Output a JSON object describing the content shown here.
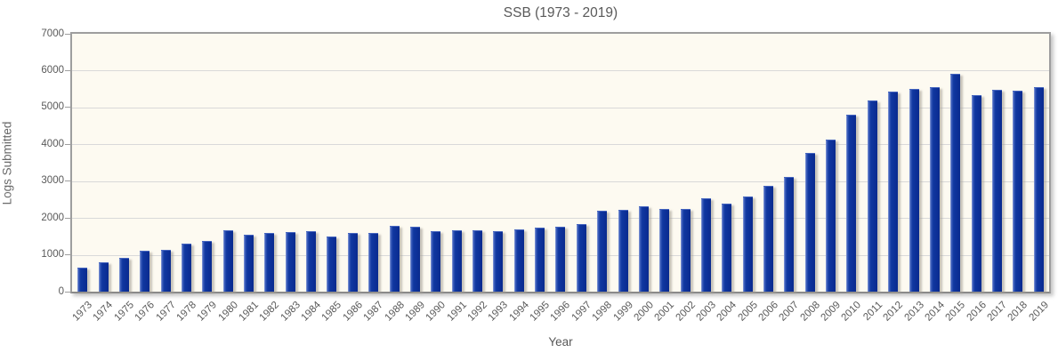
{
  "page": {
    "background": "#ffffff"
  },
  "chart": {
    "colors": {
      "bar_fill": "#0D37A2",
      "bar_highlight": "#8FA2DA",
      "bar_shadow": "#A39E94",
      "plot_background": "#FDFAF1",
      "gridline": "#D9D9D9",
      "axis_border": "#9E9E9E",
      "text": "#595959"
    }
  },
  "chart_data": {
    "type": "bar",
    "title": "SSB (1973 - 2019)",
    "xlabel": "Year",
    "ylabel": "Logs Submitted",
    "ylim": [
      0,
      7000
    ],
    "yticks": [
      0,
      1000,
      2000,
      3000,
      4000,
      5000,
      6000,
      7000
    ],
    "grid": "horizontal",
    "legend_position": "none",
    "categories": [
      "1973",
      "1974",
      "1975",
      "1976",
      "1977",
      "1978",
      "1979",
      "1980",
      "1981",
      "1982",
      "1983",
      "1984",
      "1985",
      "1986",
      "1987",
      "1988",
      "1989",
      "1990",
      "1991",
      "1992",
      "1993",
      "1994",
      "1995",
      "1996",
      "1997",
      "1998",
      "1999",
      "2000",
      "2001",
      "2002",
      "2003",
      "2004",
      "2005",
      "2006",
      "2007",
      "2008",
      "2009",
      "2010",
      "2011",
      "2012",
      "2013",
      "2014",
      "2015",
      "2016",
      "2017",
      "2018",
      "2019"
    ],
    "values": [
      620,
      780,
      900,
      1080,
      1120,
      1270,
      1360,
      1630,
      1520,
      1580,
      1600,
      1620,
      1470,
      1560,
      1580,
      1760,
      1740,
      1610,
      1630,
      1640,
      1610,
      1660,
      1710,
      1750,
      1800,
      2180,
      2190,
      2290,
      2210,
      2230,
      2520,
      2370,
      2550,
      2860,
      3100,
      3750,
      4100,
      4770,
      5160,
      5400,
      5490,
      5530,
      5900,
      5320,
      5460,
      5430,
      5540
    ]
  }
}
